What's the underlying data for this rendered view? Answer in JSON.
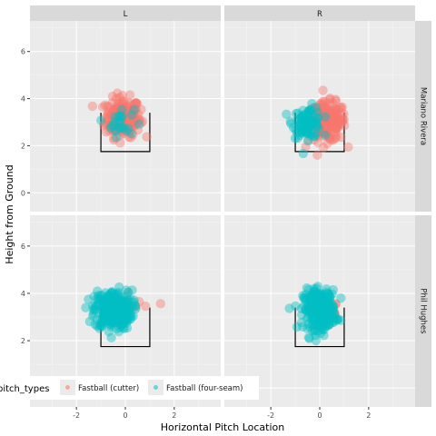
{
  "chart_data": {
    "type": "scatter",
    "title": "",
    "xlabel": "Horizontal Pitch Location",
    "ylabel": "Height from Ground",
    "xlim": [
      -3.9,
      3.9
    ],
    "ylim": [
      -0.8,
      7.3
    ],
    "x_ticks": [
      -2,
      0,
      2
    ],
    "y_ticks": [
      0,
      2,
      4,
      6
    ],
    "grid": true,
    "legend_position": "bottom-left",
    "legend": {
      "title": "pitch_types",
      "entries": [
        {
          "label": "Fastball (cutter)",
          "color": "#F8766D"
        },
        {
          "label": "Fastball (four-seam)",
          "color": "#00BFC4"
        }
      ]
    },
    "facet_cols": [
      "L",
      "R"
    ],
    "facet_rows": [
      "Mariano Rivera",
      "Phil Hughes"
    ],
    "strike_zone": {
      "x": [
        -1,
        1
      ],
      "y": [
        1.75,
        3.4
      ],
      "open_top": true
    },
    "panels": [
      {
        "col": "L",
        "row": "Mariano Rivera",
        "series": [
          {
            "name": "Fastball (cutter)",
            "center": [
              -0.1,
              3.2
            ],
            "spread": [
              0.65,
              0.75
            ],
            "count": 220
          },
          {
            "name": "Fastball (four-seam)",
            "center": [
              -0.2,
              3.0
            ],
            "spread": [
              0.5,
              0.55
            ],
            "count": 25
          }
        ]
      },
      {
        "col": "R",
        "row": "Mariano Rivera",
        "series": [
          {
            "name": "Fastball (cutter)",
            "center": [
              0.3,
              3.0
            ],
            "spread": [
              0.7,
              0.75
            ],
            "count": 200
          },
          {
            "name": "Fastball (four-seam)",
            "center": [
              -0.5,
              3.0
            ],
            "spread": [
              0.55,
              0.6
            ],
            "count": 90
          }
        ]
      },
      {
        "col": "L",
        "row": "Phil Hughes",
        "series": [
          {
            "name": "Fastball (cutter)",
            "center": [
              0.4,
              3.3
            ],
            "spread": [
              0.6,
              0.6
            ],
            "count": 8
          },
          {
            "name": "Fastball (four-seam)",
            "center": [
              -0.5,
              3.3
            ],
            "spread": [
              0.7,
              0.75
            ],
            "count": 300
          }
        ]
      },
      {
        "col": "R",
        "row": "Phil Hughes",
        "series": [
          {
            "name": "Fastball (cutter)",
            "center": [
              0.5,
              3.2
            ],
            "spread": [
              0.6,
              0.6
            ],
            "count": 10
          },
          {
            "name": "Fastball (four-seam)",
            "center": [
              0.0,
              3.3
            ],
            "spread": [
              0.6,
              0.75
            ],
            "count": 280
          }
        ]
      }
    ]
  }
}
